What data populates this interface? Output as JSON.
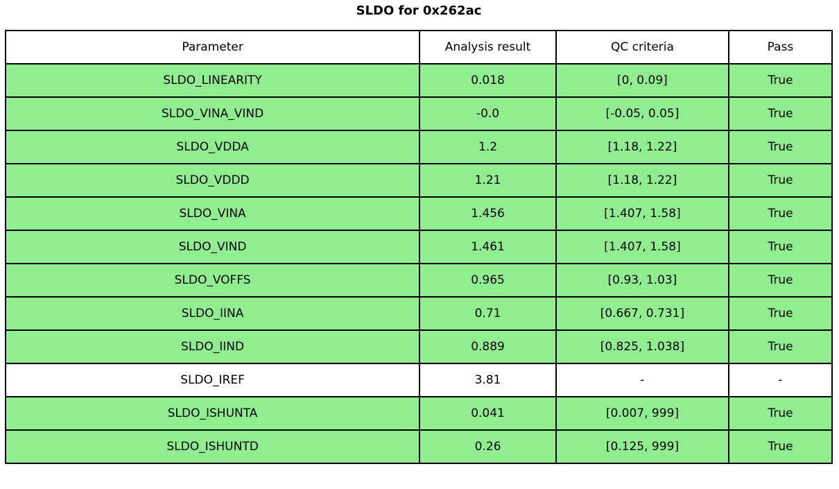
{
  "title": "SLDO for 0x262ac",
  "colors": {
    "row_green": "#90ee90",
    "row_white": "#ffffff",
    "border": "#000000",
    "text": "#000000"
  },
  "table": {
    "columns": [
      "Parameter",
      "Analysis result",
      "QC criteria",
      "Pass"
    ],
    "rows": [
      {
        "parameter": "SLDO_LINEARITY",
        "result": "0.018",
        "qc": "[0, 0.09]",
        "pass": "True",
        "highlight": true
      },
      {
        "parameter": "SLDO_VINA_VIND",
        "result": "-0.0",
        "qc": "[-0.05, 0.05]",
        "pass": "True",
        "highlight": true
      },
      {
        "parameter": "SLDO_VDDA",
        "result": "1.2",
        "qc": "[1.18, 1.22]",
        "pass": "True",
        "highlight": true
      },
      {
        "parameter": "SLDO_VDDD",
        "result": "1.21",
        "qc": "[1.18, 1.22]",
        "pass": "True",
        "highlight": true
      },
      {
        "parameter": "SLDO_VINA",
        "result": "1.456",
        "qc": "[1.407, 1.58]",
        "pass": "True",
        "highlight": true
      },
      {
        "parameter": "SLDO_VIND",
        "result": "1.461",
        "qc": "[1.407, 1.58]",
        "pass": "True",
        "highlight": true
      },
      {
        "parameter": "SLDO_VOFFS",
        "result": "0.965",
        "qc": "[0.93, 1.03]",
        "pass": "True",
        "highlight": true
      },
      {
        "parameter": "SLDO_IINA",
        "result": "0.71",
        "qc": "[0.667, 0.731]",
        "pass": "True",
        "highlight": true
      },
      {
        "parameter": "SLDO_IIND",
        "result": "0.889",
        "qc": "[0.825, 1.038]",
        "pass": "True",
        "highlight": true
      },
      {
        "parameter": "SLDO_IREF",
        "result": "3.81",
        "qc": "-",
        "pass": "-",
        "highlight": false
      },
      {
        "parameter": "SLDO_ISHUNTA",
        "result": "0.041",
        "qc": "[0.007, 999]",
        "pass": "True",
        "highlight": true
      },
      {
        "parameter": "SLDO_ISHUNTD",
        "result": "0.26",
        "qc": "[0.125, 999]",
        "pass": "True",
        "highlight": true
      }
    ]
  },
  "chart_data": {
    "type": "table",
    "title": "SLDO for 0x262ac",
    "columns": [
      "Parameter",
      "Analysis result",
      "QC criteria",
      "Pass"
    ],
    "rows": [
      [
        "SLDO_LINEARITY",
        0.018,
        "[0, 0.09]",
        "True"
      ],
      [
        "SLDO_VINA_VIND",
        -0.0,
        "[-0.05, 0.05]",
        "True"
      ],
      [
        "SLDO_VDDA",
        1.2,
        "[1.18, 1.22]",
        "True"
      ],
      [
        "SLDO_VDDD",
        1.21,
        "[1.18, 1.22]",
        "True"
      ],
      [
        "SLDO_VINA",
        1.456,
        "[1.407, 1.58]",
        "True"
      ],
      [
        "SLDO_VIND",
        1.461,
        "[1.407, 1.58]",
        "True"
      ],
      [
        "SLDO_VOFFS",
        0.965,
        "[0.93, 1.03]",
        "True"
      ],
      [
        "SLDO_IINA",
        0.71,
        "[0.667, 0.731]",
        "True"
      ],
      [
        "SLDO_IIND",
        0.889,
        "[0.825, 1.038]",
        "True"
      ],
      [
        "SLDO_IREF",
        3.81,
        "-",
        "-"
      ],
      [
        "SLDO_ISHUNTA",
        0.041,
        "[0.007, 999]",
        "True"
      ],
      [
        "SLDO_ISHUNTD",
        0.26,
        "[0.125, 999]",
        "True"
      ]
    ],
    "row_highlighted_green": [
      true,
      true,
      true,
      true,
      true,
      true,
      true,
      true,
      true,
      false,
      true,
      true
    ],
    "layout": {
      "header_background": "#ffffff",
      "pass_row_background": "#90ee90",
      "grid": "black solid"
    }
  }
}
